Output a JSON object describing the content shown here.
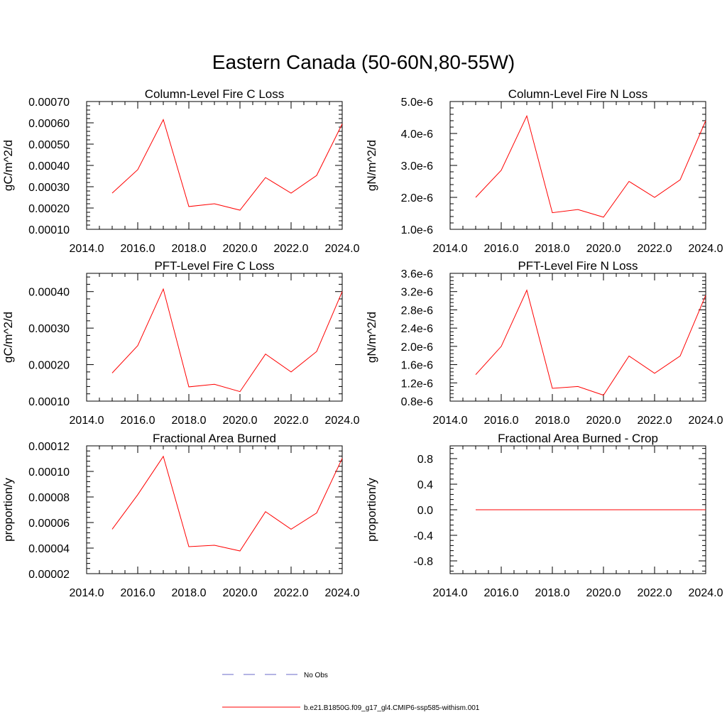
{
  "figure": {
    "title": "Eastern Canada (50-60N,80-55W)"
  },
  "chart_data": [
    {
      "type": "line",
      "title": "Column-Level Fire C Loss",
      "ylabel": "gC/m^2/d",
      "xlabel": "",
      "xlim": [
        2014.0,
        2024.0
      ],
      "ylim": [
        0.0001,
        0.0007
      ],
      "xticks": [
        2014,
        2016,
        2018,
        2020,
        2022,
        2024
      ],
      "xtick_labels": [
        "2014.0",
        "2016.0",
        "2018.0",
        "2020.0",
        "2022.0",
        "2024.0"
      ],
      "yticks": [
        0.0001,
        0.0002,
        0.0003,
        0.0004,
        0.0005,
        0.0006,
        0.0007
      ],
      "ytick_labels": [
        "0.00010",
        "0.00020",
        "0.00030",
        "0.00040",
        "0.00050",
        "0.00060",
        "0.00070"
      ],
      "x": [
        2015,
        2016,
        2017,
        2018,
        2019,
        2020,
        2021,
        2022,
        2023,
        2024
      ],
      "series": [
        {
          "name": "b.e21.B1850G.f09_g17_gl4.CMIP6-ssp585-withism.001",
          "color": "#ff0000",
          "values": [
            0.00027,
            0.00038,
            0.000615,
            0.000207,
            0.00022,
            0.00019,
            0.000343,
            0.00027,
            0.000353,
            0.000595
          ]
        }
      ]
    },
    {
      "type": "line",
      "title": "Column-Level Fire N Loss",
      "ylabel": "gN/m^2/d",
      "xlabel": "",
      "xlim": [
        2014.0,
        2024.0
      ],
      "ylim": [
        1e-06,
        5e-06
      ],
      "xticks": [
        2014,
        2016,
        2018,
        2020,
        2022,
        2024
      ],
      "xtick_labels": [
        "2014.0",
        "2016.0",
        "2018.0",
        "2020.0",
        "2022.0",
        "2024.0"
      ],
      "yticks": [
        1e-06,
        2e-06,
        3e-06,
        4e-06,
        5e-06
      ],
      "ytick_labels": [
        "1.0e-6",
        "2.0e-6",
        "3.0e-6",
        "4.0e-6",
        "5.0e-6"
      ],
      "x": [
        2015,
        2016,
        2017,
        2018,
        2019,
        2020,
        2021,
        2022,
        2023,
        2024
      ],
      "series": [
        {
          "name": "b.e21.B1850G.f09_g17_gl4.CMIP6-ssp585-withism.001",
          "color": "#ff0000",
          "values": [
            2e-06,
            2.85e-06,
            4.55e-06,
            1.52e-06,
            1.62e-06,
            1.38e-06,
            2.5e-06,
            2e-06,
            2.55e-06,
            4.4e-06
          ]
        }
      ]
    },
    {
      "type": "line",
      "title": "PFT-Level Fire C Loss",
      "ylabel": "gC/m^2/d",
      "xlabel": "",
      "xlim": [
        2014.0,
        2024.0
      ],
      "ylim": [
        0.0001,
        0.00045
      ],
      "xticks": [
        2014,
        2016,
        2018,
        2020,
        2022,
        2024
      ],
      "xtick_labels": [
        "2014.0",
        "2016.0",
        "2018.0",
        "2020.0",
        "2022.0",
        "2024.0"
      ],
      "yticks": [
        0.0001,
        0.0002,
        0.0003,
        0.0004
      ],
      "ytick_labels": [
        "0.00010",
        "0.00020",
        "0.00030",
        "0.00040"
      ],
      "x": [
        2015,
        2016,
        2017,
        2018,
        2019,
        2020,
        2021,
        2022,
        2023,
        2024
      ],
      "series": [
        {
          "name": "b.e21.B1850G.f09_g17_gl4.CMIP6-ssp585-withism.001",
          "color": "#ff0000",
          "values": [
            0.000177,
            0.000252,
            0.000407,
            0.000139,
            0.000146,
            0.000126,
            0.000229,
            0.00018,
            0.000236,
            0.0004
          ]
        }
      ]
    },
    {
      "type": "line",
      "title": "PFT-Level Fire N Loss",
      "ylabel": "gN/m^2/d",
      "xlabel": "",
      "xlim": [
        2014.0,
        2024.0
      ],
      "ylim": [
        8e-07,
        3.6e-06
      ],
      "xticks": [
        2014,
        2016,
        2018,
        2020,
        2022,
        2024
      ],
      "xtick_labels": [
        "2014.0",
        "2016.0",
        "2018.0",
        "2020.0",
        "2022.0",
        "2024.0"
      ],
      "yticks": [
        8e-07,
        1.2e-06,
        1.6e-06,
        2e-06,
        2.4e-06,
        2.8e-06,
        3.2e-06,
        3.6e-06
      ],
      "ytick_labels": [
        "0.8e-6",
        "1.2e-6",
        "1.6e-6",
        "2.0e-6",
        "2.4e-6",
        "2.8e-6",
        "3.2e-6",
        "3.6e-6"
      ],
      "x": [
        2015,
        2016,
        2017,
        2018,
        2019,
        2020,
        2021,
        2022,
        2023,
        2024
      ],
      "series": [
        {
          "name": "b.e21.B1850G.f09_g17_gl4.CMIP6-ssp585-withism.001",
          "color": "#ff0000",
          "values": [
            1.38e-06,
            2e-06,
            3.23e-06,
            1.08e-06,
            1.12e-06,
            9.3e-07,
            1.79e-06,
            1.41e-06,
            1.79e-06,
            3.12e-06
          ]
        }
      ]
    },
    {
      "type": "line",
      "title": "Fractional Area Burned",
      "ylabel": "proportion/y",
      "xlabel": "",
      "xlim": [
        2014.0,
        2024.0
      ],
      "ylim": [
        2e-05,
        0.00012
      ],
      "xticks": [
        2014,
        2016,
        2018,
        2020,
        2022,
        2024
      ],
      "xtick_labels": [
        "2014.0",
        "2016.0",
        "2018.0",
        "2020.0",
        "2022.0",
        "2024.0"
      ],
      "yticks": [
        2e-05,
        4e-05,
        6e-05,
        8e-05,
        0.0001,
        0.00012
      ],
      "ytick_labels": [
        "0.00002",
        "0.00004",
        "0.00006",
        "0.00008",
        "0.00010",
        "0.00012"
      ],
      "x": [
        2015,
        2016,
        2017,
        2018,
        2019,
        2020,
        2021,
        2022,
        2023,
        2024
      ],
      "series": [
        {
          "name": "b.e21.B1850G.f09_g17_gl4.CMIP6-ssp585-withism.001",
          "color": "#ff0000",
          "values": [
            5.48e-05,
            8.18e-05,
            0.0001118,
            4.11e-05,
            4.22e-05,
            3.78e-05,
            6.85e-05,
            5.48e-05,
            6.75e-05,
            0.0001102
          ]
        }
      ]
    },
    {
      "type": "line",
      "title": "Fractional Area Burned - Crop",
      "ylabel": "proportion/y",
      "xlabel": "",
      "xlim": [
        2014.0,
        2024.0
      ],
      "ylim": [
        -1.0,
        1.0
      ],
      "xticks": [
        2014,
        2016,
        2018,
        2020,
        2022,
        2024
      ],
      "xtick_labels": [
        "2014.0",
        "2016.0",
        "2018.0",
        "2020.0",
        "2022.0",
        "2024.0"
      ],
      "yticks": [
        -0.8,
        -0.4,
        0.0,
        0.4,
        0.8
      ],
      "ytick_labels": [
        "-0.8",
        "-0.4",
        "0.0",
        "0.4",
        "0.8"
      ],
      "x": [
        2015,
        2016,
        2017,
        2018,
        2019,
        2020,
        2021,
        2022,
        2023,
        2024
      ],
      "series": [
        {
          "name": "b.e21.B1850G.f09_g17_gl4.CMIP6-ssp585-withism.001",
          "color": "#ff0000",
          "values": [
            0,
            0,
            0,
            0,
            0,
            0,
            0,
            0,
            0,
            0
          ]
        }
      ]
    }
  ],
  "legend": {
    "entries": [
      {
        "label": "No Obs",
        "color": "#6a6ac8",
        "style": "dashed"
      },
      {
        "label": "b.e21.B1850G.f09_g17_gl4.CMIP6-ssp585-withism.001",
        "color": "#ff0000",
        "style": "solid"
      }
    ]
  }
}
